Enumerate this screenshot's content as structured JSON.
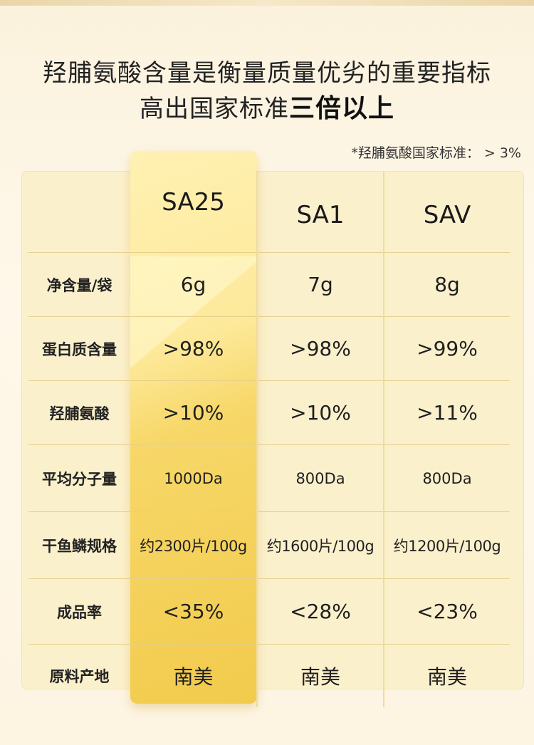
{
  "headline": {
    "line1": "羟脯氨酸含量是衡量质量优劣的重要指标",
    "line2_normal": "高出国家标准",
    "line2_bold": "三倍以上"
  },
  "note": "*羟脯氨酸国家标准： > 3%",
  "table": {
    "columns": [
      "SA25",
      "SA1",
      "SAV"
    ],
    "rows": [
      {
        "label": "净含量/袋",
        "values": [
          "6g",
          "7g",
          "8g"
        ]
      },
      {
        "label": "蛋白质含量",
        "values": [
          ">98%",
          ">98%",
          ">99%"
        ]
      },
      {
        "label": "羟脯氨酸",
        "values": [
          ">10%",
          ">10%",
          ">11%"
        ]
      },
      {
        "label": "平均分子量",
        "values": [
          "1000Da",
          "800Da",
          "800Da"
        ]
      },
      {
        "label": "干鱼鳞规格",
        "values": [
          "约2300片/100g",
          "约1600片/100g",
          "约1200片/100g"
        ]
      },
      {
        "label": "成品率",
        "values": [
          "<35%",
          "<28%",
          "<23%"
        ]
      },
      {
        "label": "原料产地",
        "values": [
          "南美",
          "南美",
          "南美"
        ]
      }
    ],
    "highlight_color": "#f5d25a",
    "panel_color": "#fbf0cc"
  }
}
